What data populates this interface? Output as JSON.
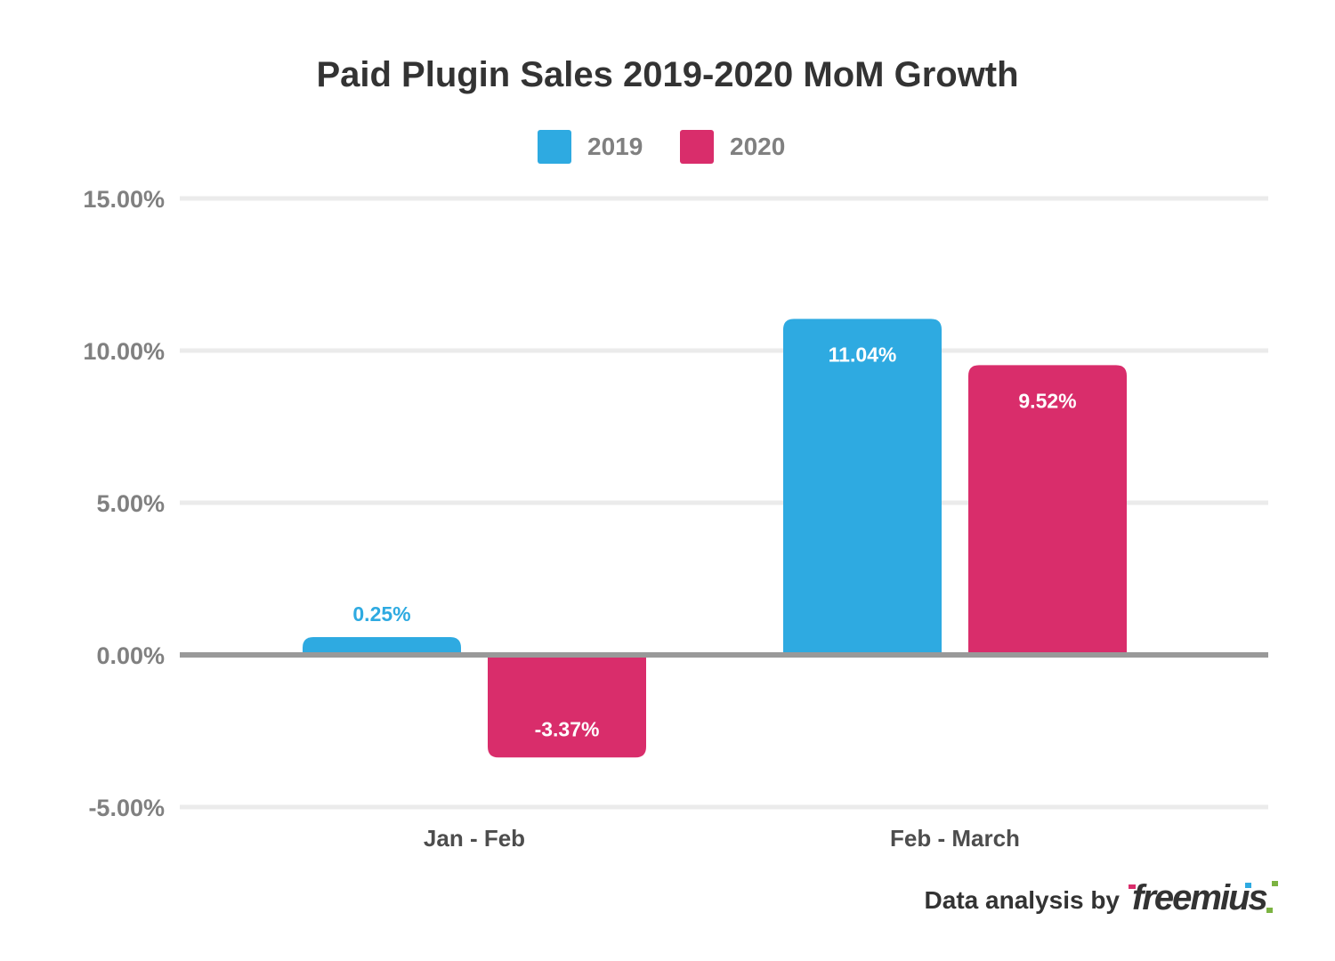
{
  "chart_data": {
    "type": "bar",
    "title": "Paid Plugin Sales 2019-2020 MoM Growth",
    "xlabel": "",
    "ylabel": "",
    "categories": [
      "Jan - Feb",
      "Feb - March"
    ],
    "series": [
      {
        "name": "2019",
        "color": "#2eaae1",
        "values": [
          0.25,
          11.04
        ],
        "labels": [
          "0.25%",
          "11.04%"
        ]
      },
      {
        "name": "2020",
        "color": "#d92d6b",
        "values": [
          -3.37,
          9.52
        ],
        "labels": [
          "-3.37%",
          "9.52%"
        ]
      }
    ],
    "ylim": [
      -5,
      15
    ],
    "yticks": [
      15,
      10,
      5,
      0,
      -5
    ],
    "ytick_labels": [
      "15.00%",
      "10.00%",
      "5.00%",
      "0.00%",
      "-5.00%"
    ],
    "grid": true,
    "legend_position": "top-center"
  },
  "footer": {
    "credit_text": "Data analysis by",
    "brand": "freemius"
  }
}
